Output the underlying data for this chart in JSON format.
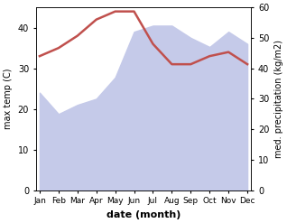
{
  "months": [
    "Jan",
    "Feb",
    "Mar",
    "Apr",
    "May",
    "Jun",
    "Jul",
    "Aug",
    "Sep",
    "Oct",
    "Nov",
    "Dec"
  ],
  "month_indices": [
    0,
    1,
    2,
    3,
    4,
    5,
    6,
    7,
    8,
    9,
    10,
    11
  ],
  "temperature": [
    33,
    35,
    38,
    42,
    44,
    44,
    36,
    31,
    31,
    33,
    34,
    31
  ],
  "precipitation": [
    32,
    25,
    28,
    30,
    37,
    52,
    54,
    54,
    50,
    47,
    52,
    48
  ],
  "temp_color": "#c0504d",
  "precip_fill_color": "#c5cae9",
  "precip_line_color": "#7b6d8d",
  "temp_ylim": [
    0,
    45
  ],
  "precip_ylim": [
    0,
    60
  ],
  "temp_yticks": [
    0,
    10,
    20,
    30,
    40
  ],
  "precip_yticks": [
    0,
    10,
    20,
    30,
    40,
    50,
    60
  ],
  "xlabel": "date (month)",
  "ylabel_left": "max temp (C)",
  "ylabel_right": "med. precipitation (kg/m2)"
}
